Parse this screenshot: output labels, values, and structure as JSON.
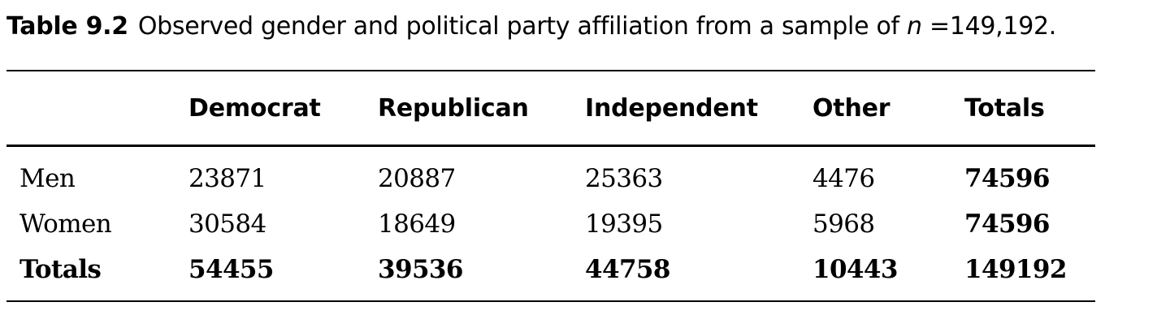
{
  "caption": {
    "label": "Table 9.2",
    "text_before_n": "Observed gender and political party affiliation from a sample of ",
    "n_symbol": "n",
    "text_after_n": " =149,192."
  },
  "table": {
    "headers": [
      "",
      "Democrat",
      "Republican",
      "Independent",
      "Other",
      "Totals"
    ],
    "rows": [
      [
        "Men",
        "23871",
        "20887",
        "25363",
        "4476",
        "74596"
      ],
      [
        "Women",
        "30584",
        "18649",
        "19395",
        "5968",
        "74596"
      ],
      [
        "Totals",
        "54455",
        "39536",
        "44758",
        "10443",
        "149192"
      ]
    ]
  }
}
